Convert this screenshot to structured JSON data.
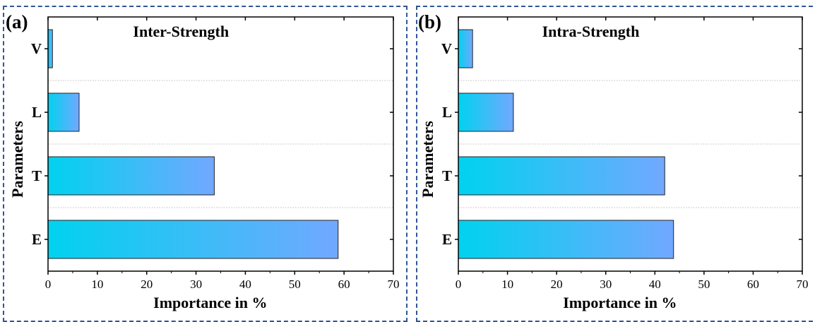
{
  "chart_data": [
    {
      "type": "bar",
      "orientation": "horizontal",
      "panel_label": "(a)",
      "title": "Inter-Strength",
      "xlabel": "Importance in %",
      "ylabel": "Parameters",
      "categories": [
        "E",
        "T",
        "L",
        "V"
      ],
      "values": [
        58.8,
        33.7,
        6.3,
        0.9
      ],
      "xlim": [
        0,
        70
      ],
      "xticks": [
        0,
        10,
        20,
        30,
        40,
        50,
        60,
        70
      ],
      "grid": "horizontal dotted between categories",
      "bar_gradient": [
        "#00d2ef",
        "#72a8ff"
      ]
    },
    {
      "type": "bar",
      "orientation": "horizontal",
      "panel_label": "(b)",
      "title": "Intra-Strength",
      "xlabel": "Importance in %",
      "ylabel": "Parameters",
      "categories": [
        "E",
        "T",
        "L",
        "V"
      ],
      "values": [
        43.8,
        42.0,
        11.2,
        2.9
      ],
      "xlim": [
        0,
        70
      ],
      "xticks": [
        0,
        10,
        20,
        30,
        40,
        50,
        60,
        70
      ],
      "grid": "horizontal dotted between categories",
      "bar_gradient": [
        "#00d2ef",
        "#72a8ff"
      ]
    }
  ],
  "colors": {
    "frame": "#2f5597",
    "axis": "#000000",
    "bar_stroke": "#222222",
    "grid": "#bbbbbb"
  }
}
